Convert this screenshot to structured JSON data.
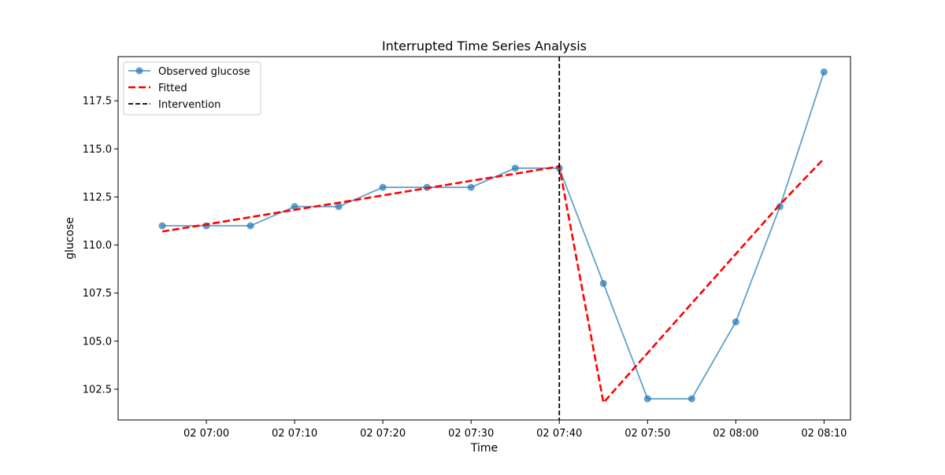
{
  "chart_data": {
    "type": "line",
    "title": "Interrupted Time Series Analysis",
    "xlabel": "Time",
    "ylabel": "glucose",
    "grid": false,
    "legend_position": "upper-left",
    "x_axis_type": "datetime",
    "xlim": [
      "2024-01-02T06:50:00",
      "2024-01-02T08:13:00"
    ],
    "ylim": [
      100.9,
      119.8
    ],
    "x_ticks": [
      "2024-01-02T07:00:00",
      "2024-01-02T07:10:00",
      "2024-01-02T07:20:00",
      "2024-01-02T07:30:00",
      "2024-01-02T07:40:00",
      "2024-01-02T07:50:00",
      "2024-01-02T08:00:00",
      "2024-01-02T08:10:00"
    ],
    "x_tick_labels": [
      "02 07:00",
      "02 07:10",
      "02 07:20",
      "02 07:30",
      "02 07:40",
      "02 07:50",
      "02 08:00",
      "02 08:10"
    ],
    "y_ticks": [
      102.5,
      105.0,
      107.5,
      110.0,
      112.5,
      115.0,
      117.5
    ],
    "y_tick_labels": [
      "102.5",
      "105.0",
      "107.5",
      "110.0",
      "112.5",
      "115.0",
      "117.5"
    ],
    "x": [
      "2024-01-02T06:55:00",
      "2024-01-02T07:00:00",
      "2024-01-02T07:05:00",
      "2024-01-02T07:10:00",
      "2024-01-02T07:15:00",
      "2024-01-02T07:20:00",
      "2024-01-02T07:25:00",
      "2024-01-02T07:30:00",
      "2024-01-02T07:35:00",
      "2024-01-02T07:40:00",
      "2024-01-02T07:45:00",
      "2024-01-02T07:50:00",
      "2024-01-02T07:55:00",
      "2024-01-02T08:00:00",
      "2024-01-02T08:05:00",
      "2024-01-02T08:10:00"
    ],
    "series": [
      {
        "name": "Observed glucose",
        "style": "line-markers",
        "color": "#1f77b4",
        "values": [
          111,
          111,
          111,
          112,
          112,
          113,
          113,
          113,
          114,
          114,
          108,
          102,
          102,
          106,
          112,
          119
        ]
      },
      {
        "name": "Fitted",
        "style": "dashed",
        "color": "#ff0000",
        "values": [
          110.7,
          111.07,
          111.45,
          111.83,
          112.2,
          112.58,
          112.96,
          113.34,
          113.71,
          114.09,
          101.8,
          104.38,
          106.96,
          109.53,
          112.11,
          114.5
        ]
      }
    ],
    "vlines": [
      {
        "name": "Intervention",
        "x": "2024-01-02T07:40:00",
        "color": "#000000",
        "style": "dashed"
      }
    ]
  }
}
